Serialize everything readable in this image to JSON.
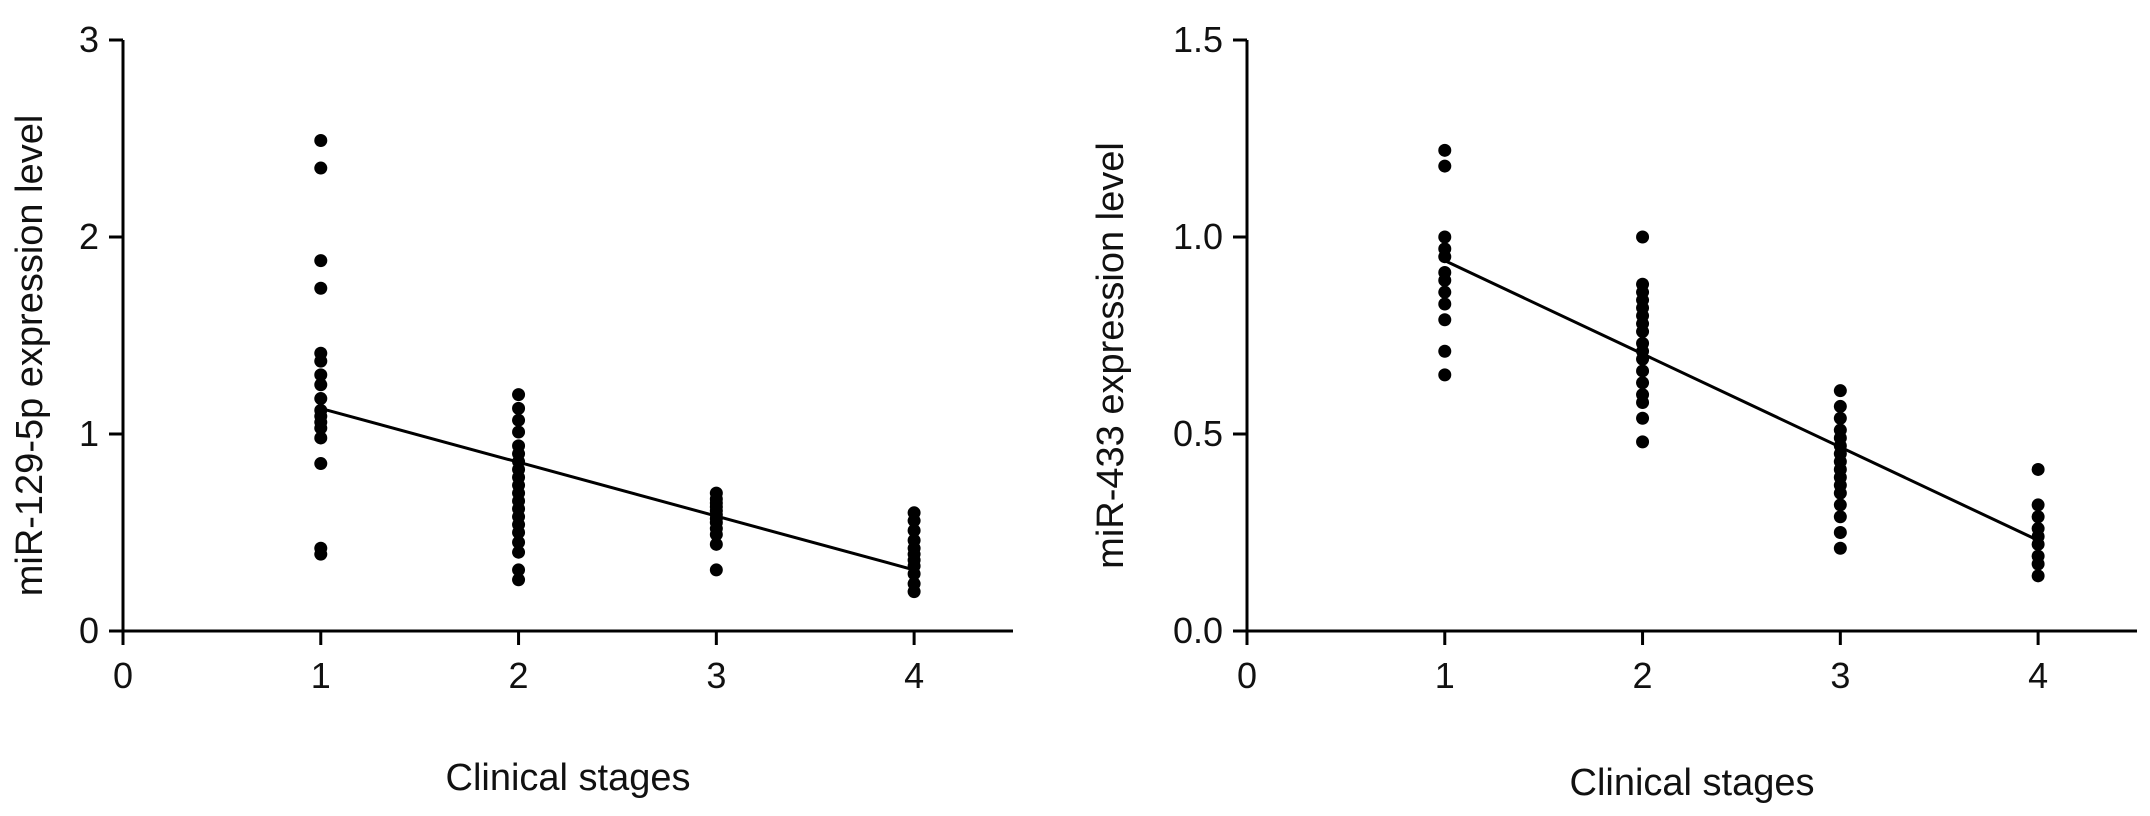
{
  "chart_data": [
    {
      "type": "scatter",
      "title": "",
      "xlabel": "Clinical stages",
      "ylabel": "miR-129-5p expression level",
      "xlim": [
        0,
        4.5
      ],
      "ylim": [
        0,
        3
      ],
      "xticks": [
        "0",
        "1",
        "2",
        "3",
        "4"
      ],
      "yticks": [
        "0",
        "1",
        "2",
        "3"
      ],
      "grid": false,
      "legend": "none",
      "point_color": "#000000",
      "points": [
        [
          1,
          2.49
        ],
        [
          1,
          2.35
        ],
        [
          1,
          1.88
        ],
        [
          1,
          1.74
        ],
        [
          1,
          1.41
        ],
        [
          1,
          1.37
        ],
        [
          1,
          1.3
        ],
        [
          1,
          1.25
        ],
        [
          1,
          1.18
        ],
        [
          1,
          1.12
        ],
        [
          1,
          1.09
        ],
        [
          1,
          1.06
        ],
        [
          1,
          1.03
        ],
        [
          1,
          0.98
        ],
        [
          1,
          0.85
        ],
        [
          1,
          0.42
        ],
        [
          1,
          0.39
        ],
        [
          2,
          1.2
        ],
        [
          2,
          1.13
        ],
        [
          2,
          1.07
        ],
        [
          2,
          1.01
        ],
        [
          2,
          0.94
        ],
        [
          2,
          0.9
        ],
        [
          2,
          0.86
        ],
        [
          2,
          0.82
        ],
        [
          2,
          0.78
        ],
        [
          2,
          0.74
        ],
        [
          2,
          0.7
        ],
        [
          2,
          0.66
        ],
        [
          2,
          0.62
        ],
        [
          2,
          0.58
        ],
        [
          2,
          0.54
        ],
        [
          2,
          0.5
        ],
        [
          2,
          0.45
        ],
        [
          2,
          0.4
        ],
        [
          2,
          0.31
        ],
        [
          2,
          0.26
        ],
        [
          3,
          0.7
        ],
        [
          3,
          0.67
        ],
        [
          3,
          0.65
        ],
        [
          3,
          0.63
        ],
        [
          3,
          0.61
        ],
        [
          3,
          0.59
        ],
        [
          3,
          0.57
        ],
        [
          3,
          0.55
        ],
        [
          3,
          0.52
        ],
        [
          3,
          0.49
        ],
        [
          3,
          0.44
        ],
        [
          3,
          0.31
        ],
        [
          4,
          0.6
        ],
        [
          4,
          0.56
        ],
        [
          4,
          0.51
        ],
        [
          4,
          0.46
        ],
        [
          4,
          0.42
        ],
        [
          4,
          0.39
        ],
        [
          4,
          0.36
        ],
        [
          4,
          0.33
        ],
        [
          4,
          0.29
        ],
        [
          4,
          0.24
        ],
        [
          4,
          0.2
        ]
      ],
      "trendline": [
        [
          1,
          1.13
        ],
        [
          4,
          0.31
        ]
      ]
    },
    {
      "type": "scatter",
      "title": "",
      "xlabel": "Clinical stages",
      "ylabel": "miR-433 expression level",
      "xlim": [
        0,
        4.5
      ],
      "ylim": [
        0,
        1.5
      ],
      "xticks": [
        "0",
        "1",
        "2",
        "3",
        "4"
      ],
      "yticks": [
        "0.0",
        "0.5",
        "1.0",
        "1.5"
      ],
      "grid": false,
      "legend": "none",
      "point_color": "#000000",
      "points": [
        [
          1,
          1.22
        ],
        [
          1,
          1.18
        ],
        [
          1,
          1.0
        ],
        [
          1,
          0.97
        ],
        [
          1,
          0.95
        ],
        [
          1,
          0.91
        ],
        [
          1,
          0.89
        ],
        [
          1,
          0.86
        ],
        [
          1,
          0.83
        ],
        [
          1,
          0.79
        ],
        [
          1,
          0.71
        ],
        [
          1,
          0.65
        ],
        [
          2,
          1.0
        ],
        [
          2,
          0.88
        ],
        [
          2,
          0.86
        ],
        [
          2,
          0.84
        ],
        [
          2,
          0.82
        ],
        [
          2,
          0.8
        ],
        [
          2,
          0.78
        ],
        [
          2,
          0.76
        ],
        [
          2,
          0.73
        ],
        [
          2,
          0.71
        ],
        [
          2,
          0.69
        ],
        [
          2,
          0.66
        ],
        [
          2,
          0.63
        ],
        [
          2,
          0.6
        ],
        [
          2,
          0.58
        ],
        [
          2,
          0.54
        ],
        [
          2,
          0.48
        ],
        [
          3,
          0.61
        ],
        [
          3,
          0.57
        ],
        [
          3,
          0.54
        ],
        [
          3,
          0.51
        ],
        [
          3,
          0.49
        ],
        [
          3,
          0.47
        ],
        [
          3,
          0.45
        ],
        [
          3,
          0.43
        ],
        [
          3,
          0.41
        ],
        [
          3,
          0.39
        ],
        [
          3,
          0.37
        ],
        [
          3,
          0.35
        ],
        [
          3,
          0.32
        ],
        [
          3,
          0.29
        ],
        [
          3,
          0.25
        ],
        [
          3,
          0.21
        ],
        [
          4,
          0.41
        ],
        [
          4,
          0.32
        ],
        [
          4,
          0.29
        ],
        [
          4,
          0.26
        ],
        [
          4,
          0.24
        ],
        [
          4,
          0.22
        ],
        [
          4,
          0.19
        ],
        [
          4,
          0.17
        ],
        [
          4,
          0.14
        ]
      ],
      "trendline": [
        [
          1,
          0.94
        ],
        [
          4,
          0.23
        ]
      ]
    }
  ]
}
